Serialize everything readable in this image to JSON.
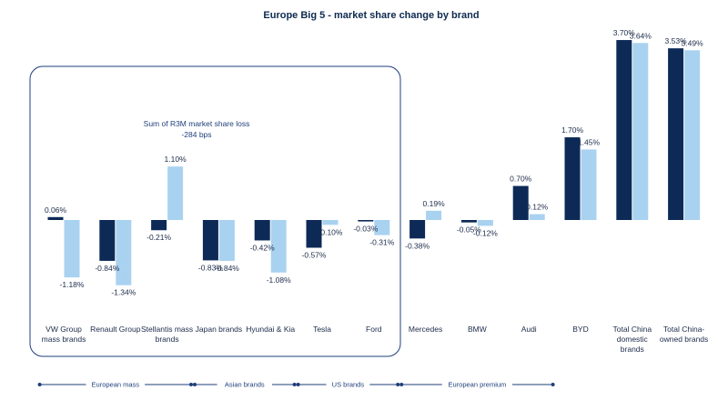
{
  "chart_data": {
    "type": "bar",
    "title": "Europe Big 5 - market share change by brand",
    "categories": [
      [
        "VW Group",
        "mass brands"
      ],
      [
        "Renault Group"
      ],
      [
        "Stellantis mass",
        "brands"
      ],
      [
        "Japan brands"
      ],
      [
        "Hyundai & Kia"
      ],
      [
        "Tesla"
      ],
      [
        "Ford"
      ],
      [
        "Mercedes"
      ],
      [
        "BMW"
      ],
      [
        "Audi"
      ],
      [
        "BYD"
      ],
      [
        "Total China",
        "domestic",
        "brands"
      ],
      [
        "Total China-",
        "owned brands"
      ]
    ],
    "series": [
      {
        "color": "#0d2a57",
        "values": [
          0.06,
          -0.84,
          -0.21,
          -0.83,
          -0.42,
          -0.57,
          -0.03,
          -0.38,
          -0.05,
          0.7,
          1.7,
          3.7,
          3.53
        ],
        "labels": [
          "0.06%",
          "-0.84%",
          "-0.21%",
          "-0.83%",
          "-0.42%",
          "-0.57%",
          "-0.03%",
          "-0.38%",
          "-0.05%",
          "0.70%",
          "1.70%",
          "3.70%",
          "3.53%"
        ]
      },
      {
        "color": "#a9d2f0",
        "values": [
          -1.18,
          -1.34,
          1.1,
          -0.84,
          -1.08,
          -0.1,
          -0.31,
          0.19,
          -0.12,
          0.12,
          1.45,
          3.64,
          3.49
        ],
        "labels": [
          "-1.18%",
          "-1.34%",
          "1.10%",
          "-0.84%",
          "-1.08%",
          "-0.10%",
          "-0.31%",
          "0.19%",
          "-0.12%",
          "0.12%",
          "1.45%",
          "3.64%",
          "3.49%"
        ]
      }
    ],
    "annotation": [
      "Sum of R3M market share loss",
      "-284 bps"
    ],
    "groups": [
      {
        "label": "European mass",
        "from": 0,
        "to": 3
      },
      {
        "label": "Asian brands",
        "from": 3,
        "to": 5
      },
      {
        "label": "US brands",
        "from": 5,
        "to": 7
      },
      {
        "label": "European premium",
        "from": 7,
        "to": 10
      }
    ],
    "ylim": [
      -1.6,
      3.9
    ]
  }
}
